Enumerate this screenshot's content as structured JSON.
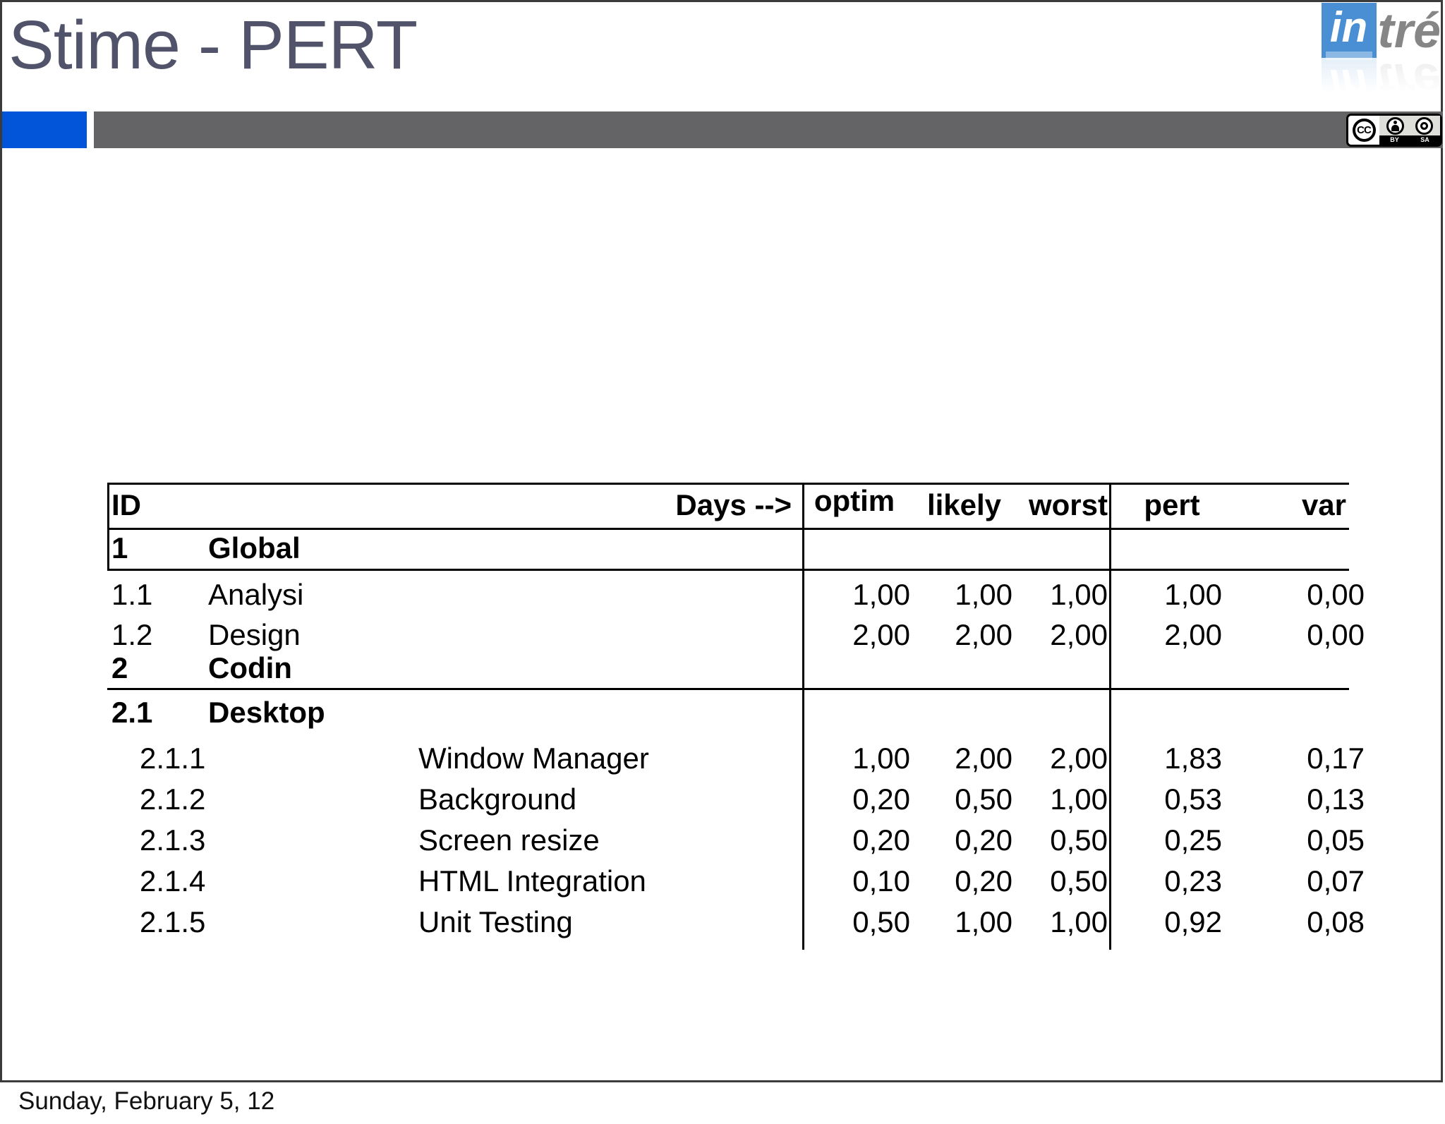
{
  "slide": {
    "title": "Stime - PERT",
    "footer_date": "Sunday, February 5, 12",
    "colors": {
      "accent_blue": "#0254d9",
      "bar_gray": "#646467",
      "title_color": "#50536a",
      "logo_blue": "#4a8ed3",
      "logo_gray": "#868686"
    }
  },
  "logo": {
    "prefix": "in",
    "suffix": "tré"
  },
  "license": {
    "cc": "CC",
    "by": "BY",
    "sa": "SA"
  },
  "table": {
    "header": {
      "id": "ID",
      "days": "Days -->",
      "cols": [
        "optim",
        "likely",
        "worst",
        "pert",
        "var"
      ]
    },
    "rows": [
      {
        "id": "1",
        "name": "Global",
        "bold": true,
        "sub": false,
        "values": [
          "",
          "",
          "",
          "",
          ""
        ]
      },
      {
        "id": "1.1",
        "name": "Analysi",
        "bold": false,
        "sub": false,
        "values": [
          "1,00",
          "1,00",
          "1,00",
          "1,00",
          "0,00"
        ]
      },
      {
        "id": "1.2",
        "name": "Design",
        "bold": false,
        "sub": false,
        "values": [
          "2,00",
          "2,00",
          "2,00",
          "2,00",
          "0,00"
        ]
      },
      {
        "id": "2",
        "name": "Codin",
        "bold": true,
        "sub": false,
        "values": [
          "",
          "",
          "",
          "",
          ""
        ]
      },
      {
        "id": "2.1",
        "name": "Desktop",
        "bold": true,
        "sub": false,
        "values": [
          "",
          "",
          "",
          "",
          ""
        ]
      },
      {
        "id": "2.1.1",
        "name": "Window Manager",
        "bold": false,
        "sub": true,
        "values": [
          "1,00",
          "2,00",
          "2,00",
          "1,83",
          "0,17"
        ]
      },
      {
        "id": "2.1.2",
        "name": "Background",
        "bold": false,
        "sub": true,
        "values": [
          "0,20",
          "0,50",
          "1,00",
          "0,53",
          "0,13"
        ]
      },
      {
        "id": "2.1.3",
        "name": "Screen resize",
        "bold": false,
        "sub": true,
        "values": [
          "0,20",
          "0,20",
          "0,50",
          "0,25",
          "0,05"
        ]
      },
      {
        "id": "2.1.4",
        "name": "HTML Integration",
        "bold": false,
        "sub": true,
        "values": [
          "0,10",
          "0,20",
          "0,50",
          "0,23",
          "0,07"
        ]
      },
      {
        "id": "2.1.5",
        "name": "Unit Testing",
        "bold": false,
        "sub": true,
        "values": [
          "0,50",
          "1,00",
          "1,00",
          "0,92",
          "0,08"
        ]
      }
    ]
  }
}
